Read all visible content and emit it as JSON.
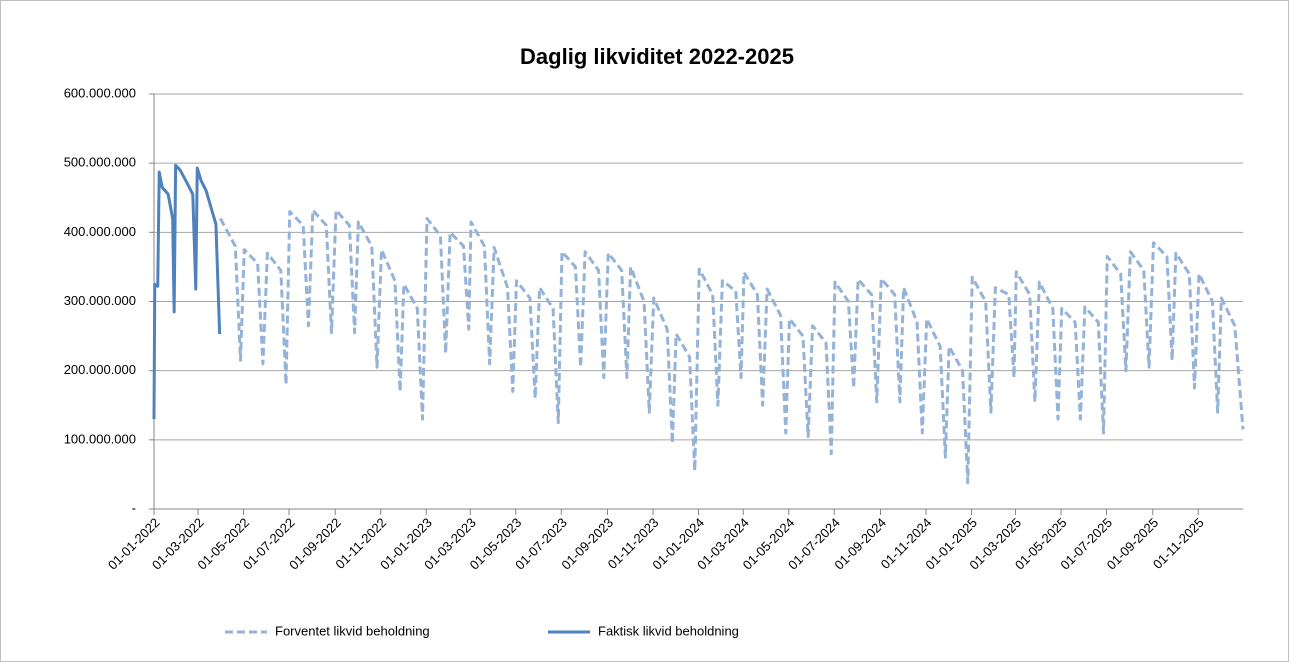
{
  "chart_data": {
    "type": "line",
    "title": "Daglig likviditet 2022-2025",
    "xlim": [
      "2022-01-01",
      "2025-12-31"
    ],
    "xticks": [
      {
        "value": "2022-01-01",
        "label": "01-01-2022"
      },
      {
        "value": "2022-03-01",
        "label": "01-03-2022"
      },
      {
        "value": "2022-05-01",
        "label": "01-05-2022"
      },
      {
        "value": "2022-07-01",
        "label": "01-07-2022"
      },
      {
        "value": "2022-09-01",
        "label": "01-09-2022"
      },
      {
        "value": "2022-11-01",
        "label": "01-11-2022"
      },
      {
        "value": "2023-01-01",
        "label": "01-01-2023"
      },
      {
        "value": "2023-03-01",
        "label": "01-03-2023"
      },
      {
        "value": "2023-05-01",
        "label": "01-05-2023"
      },
      {
        "value": "2023-07-01",
        "label": "01-07-2023"
      },
      {
        "value": "2023-09-01",
        "label": "01-09-2023"
      },
      {
        "value": "2023-11-01",
        "label": "01-11-2023"
      },
      {
        "value": "2024-01-01",
        "label": "01-01-2024"
      },
      {
        "value": "2024-03-01",
        "label": "01-03-2024"
      },
      {
        "value": "2024-05-01",
        "label": "01-05-2024"
      },
      {
        "value": "2024-07-01",
        "label": "01-07-2024"
      },
      {
        "value": "2024-09-01",
        "label": "01-09-2024"
      },
      {
        "value": "2024-11-01",
        "label": "01-11-2024"
      },
      {
        "value": "2025-01-01",
        "label": "01-01-2025"
      },
      {
        "value": "2025-03-01",
        "label": "01-03-2025"
      },
      {
        "value": "2025-05-01",
        "label": "01-05-2025"
      },
      {
        "value": "2025-07-01",
        "label": "01-07-2025"
      },
      {
        "value": "2025-09-01",
        "label": "01-09-2025"
      },
      {
        "value": "2025-11-01",
        "label": "01-11-2025"
      }
    ],
    "ylim": [
      0,
      600000000
    ],
    "yticks": [
      {
        "value": 0,
        "label": "-"
      },
      {
        "value": 100000000,
        "label": "100.000.000"
      },
      {
        "value": 200000000,
        "label": "200.000.000"
      },
      {
        "value": 300000000,
        "label": "300.000.000"
      },
      {
        "value": 400000000,
        "label": "400.000.000"
      },
      {
        "value": 500000000,
        "label": "500.000.000"
      },
      {
        "value": 600000000,
        "label": "600.000.000"
      }
    ],
    "grid": true,
    "series": [
      {
        "name": "Forventet likvid beholdning",
        "color": "#95b3d7",
        "dashed": true,
        "x": [
          "2022-03-31",
          "2022-04-20",
          "2022-04-27",
          "2022-05-02",
          "2022-05-20",
          "2022-05-27",
          "2022-06-02",
          "2022-06-20",
          "2022-06-27",
          "2022-07-02",
          "2022-07-20",
          "2022-07-27",
          "2022-08-02",
          "2022-08-20",
          "2022-08-27",
          "2022-09-02",
          "2022-09-20",
          "2022-09-27",
          "2022-10-02",
          "2022-10-20",
          "2022-10-27",
          "2022-11-02",
          "2022-11-20",
          "2022-11-27",
          "2022-12-02",
          "2022-12-20",
          "2022-12-27",
          "2023-01-02",
          "2023-01-20",
          "2023-01-27",
          "2023-02-02",
          "2023-02-20",
          "2023-02-27",
          "2023-03-02",
          "2023-03-20",
          "2023-03-27",
          "2023-04-02",
          "2023-04-20",
          "2023-04-27",
          "2023-05-02",
          "2023-05-20",
          "2023-05-27",
          "2023-06-02",
          "2023-06-20",
          "2023-06-27",
          "2023-07-02",
          "2023-07-20",
          "2023-07-27",
          "2023-08-02",
          "2023-08-20",
          "2023-08-27",
          "2023-09-02",
          "2023-09-20",
          "2023-09-27",
          "2023-10-02",
          "2023-10-20",
          "2023-10-27",
          "2023-11-02",
          "2023-11-20",
          "2023-11-27",
          "2023-12-02",
          "2023-12-20",
          "2023-12-27",
          "2024-01-02",
          "2024-01-20",
          "2024-01-27",
          "2024-02-02",
          "2024-02-20",
          "2024-02-27",
          "2024-03-02",
          "2024-03-20",
          "2024-03-27",
          "2024-04-02",
          "2024-04-20",
          "2024-04-27",
          "2024-05-02",
          "2024-05-20",
          "2024-05-27",
          "2024-06-02",
          "2024-06-20",
          "2024-06-27",
          "2024-07-02",
          "2024-07-20",
          "2024-07-27",
          "2024-08-02",
          "2024-08-20",
          "2024-08-27",
          "2024-09-02",
          "2024-09-20",
          "2024-09-27",
          "2024-10-02",
          "2024-10-20",
          "2024-10-27",
          "2024-11-02",
          "2024-11-20",
          "2024-11-27",
          "2024-12-02",
          "2024-12-20",
          "2024-12-27",
          "2025-01-02",
          "2025-01-20",
          "2025-01-27",
          "2025-02-02",
          "2025-02-20",
          "2025-02-27",
          "2025-03-02",
          "2025-03-20",
          "2025-03-27",
          "2025-04-02",
          "2025-04-20",
          "2025-04-27",
          "2025-05-02",
          "2025-05-20",
          "2025-05-27",
          "2025-06-02",
          "2025-06-20",
          "2025-06-27",
          "2025-07-02",
          "2025-07-20",
          "2025-07-27",
          "2025-08-02",
          "2025-08-20",
          "2025-08-27",
          "2025-09-02",
          "2025-09-20",
          "2025-09-27",
          "2025-10-02",
          "2025-10-20",
          "2025-10-27",
          "2025-11-02",
          "2025-11-20",
          "2025-11-27",
          "2025-12-02",
          "2025-12-20",
          "2025-12-31"
        ],
        "values": [
          420000000,
          380000000,
          215000000,
          375000000,
          355000000,
          210000000,
          370000000,
          345000000,
          180000000,
          430000000,
          410000000,
          265000000,
          432000000,
          410000000,
          255000000,
          432000000,
          410000000,
          255000000,
          415000000,
          380000000,
          205000000,
          375000000,
          330000000,
          170000000,
          325000000,
          290000000,
          130000000,
          420000000,
          395000000,
          225000000,
          400000000,
          380000000,
          260000000,
          415000000,
          380000000,
          210000000,
          378000000,
          320000000,
          170000000,
          330000000,
          305000000,
          160000000,
          320000000,
          290000000,
          125000000,
          372000000,
          350000000,
          205000000,
          372000000,
          345000000,
          190000000,
          370000000,
          345000000,
          190000000,
          350000000,
          300000000,
          140000000,
          305000000,
          260000000,
          95000000,
          253000000,
          220000000,
          55000000,
          347000000,
          310000000,
          150000000,
          330000000,
          315000000,
          190000000,
          342000000,
          310000000,
          150000000,
          318000000,
          280000000,
          110000000,
          275000000,
          250000000,
          105000000,
          265000000,
          240000000,
          80000000,
          328000000,
          300000000,
          175000000,
          332000000,
          310000000,
          155000000,
          333000000,
          310000000,
          155000000,
          320000000,
          270000000,
          110000000,
          275000000,
          235000000,
          75000000,
          235000000,
          200000000,
          38000000,
          335000000,
          300000000,
          140000000,
          320000000,
          310000000,
          190000000,
          343000000,
          310000000,
          155000000,
          328000000,
          290000000,
          130000000,
          290000000,
          270000000,
          130000000,
          292000000,
          270000000,
          110000000,
          365000000,
          340000000,
          200000000,
          372000000,
          345000000,
          205000000,
          385000000,
          365000000,
          215000000,
          370000000,
          340000000,
          175000000,
          340000000,
          300000000,
          140000000,
          305000000,
          265000000,
          115000000
        ]
      },
      {
        "name": "Faktisk likvid beholdning",
        "color": "#4f81bd",
        "dashed": false,
        "x": [
          "2022-01-01",
          "2022-01-02",
          "2022-01-06",
          "2022-01-08",
          "2022-01-12",
          "2022-01-20",
          "2022-01-26",
          "2022-01-28",
          "2022-01-30",
          "2022-02-05",
          "2022-02-15",
          "2022-02-22",
          "2022-02-26",
          "2022-02-28",
          "2022-03-05",
          "2022-03-12",
          "2022-03-20",
          "2022-03-25",
          "2022-03-30"
        ],
        "values": [
          130000000,
          325000000,
          322000000,
          487000000,
          465000000,
          455000000,
          420000000,
          285000000,
          497000000,
          490000000,
          470000000,
          455000000,
          318000000,
          493000000,
          475000000,
          460000000,
          430000000,
          412000000,
          253000000
        ]
      }
    ]
  }
}
